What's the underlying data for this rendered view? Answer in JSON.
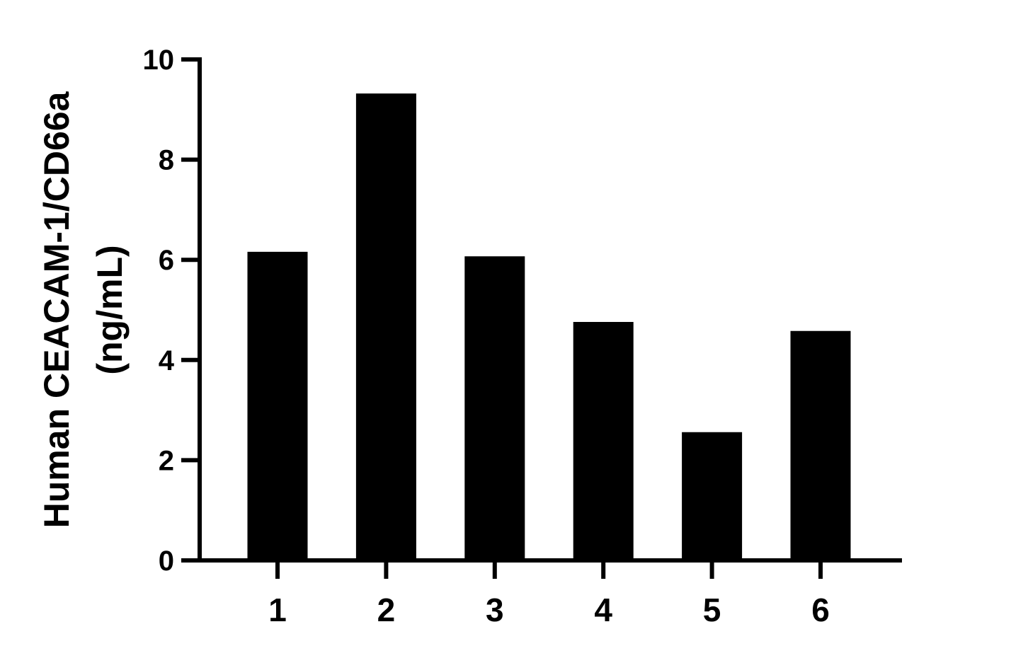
{
  "chart_data": {
    "type": "bar",
    "title": "",
    "xlabel": "",
    "ylabel_lines": [
      "Human CEACAM-1/CD66a",
      "(ng/mL)"
    ],
    "categories": [
      "1",
      "2",
      "3",
      "4",
      "5",
      "6"
    ],
    "values": [
      6.16,
      9.32,
      6.07,
      4.76,
      2.56,
      4.58
    ],
    "ylim": [
      0,
      10
    ],
    "yticks": [
      "0",
      "2",
      "4",
      "6",
      "8",
      "10"
    ],
    "grid": false,
    "legend": "none",
    "bar_color": "#000000"
  }
}
